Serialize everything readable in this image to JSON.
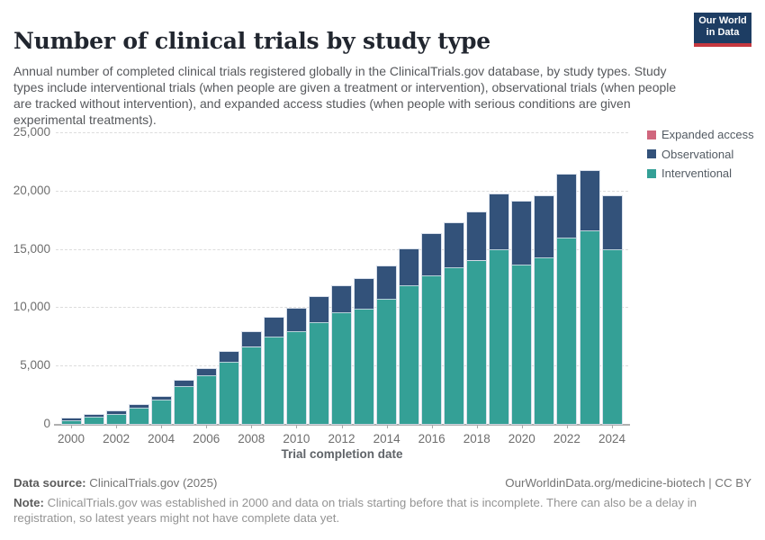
{
  "header": {
    "title": "Number of clinical trials by study type",
    "subtitle": "Annual number of completed clinical trials registered globally in the ClinicalTrials.gov database, by study types. Study types include interventional trials (when people are given a treatment or intervention), observational trials (when people are tracked without intervention), and expanded access studies (when people with serious conditions are given experimental treatments).",
    "logo": {
      "line1": "Our World",
      "line2": "in Data"
    }
  },
  "chart_data": {
    "type": "bar",
    "stacked": true,
    "title": "Number of clinical trials by study type",
    "xlabel": "Trial completion date",
    "ylabel": "",
    "ylim": [
      0,
      25000
    ],
    "yticks": [
      0,
      5000,
      10000,
      15000,
      20000,
      25000
    ],
    "ytick_labels": [
      "0",
      "5,000",
      "10,000",
      "15,000",
      "20,000",
      "25,000"
    ],
    "grid": "horizontal-dashed",
    "legend_position": "top-right",
    "categories": [
      "2000",
      "2001",
      "2002",
      "2003",
      "2004",
      "2005",
      "2006",
      "2007",
      "2008",
      "2009",
      "2010",
      "2011",
      "2012",
      "2013",
      "2014",
      "2015",
      "2016",
      "2017",
      "2018",
      "2019",
      "2020",
      "2021",
      "2022",
      "2023",
      "2024"
    ],
    "xtick_labels": [
      "2000",
      "2002",
      "2004",
      "2006",
      "2008",
      "2010",
      "2012",
      "2014",
      "2016",
      "2018",
      "2020",
      "2022",
      "2024"
    ],
    "series": [
      {
        "name": "Interventional",
        "color": "#34a096",
        "values": [
          300,
          620,
          880,
          1400,
          2050,
          3250,
          4150,
          5350,
          6600,
          7450,
          7950,
          8700,
          9550,
          9900,
          10700,
          11850,
          12750,
          13400,
          14000,
          15000,
          13700,
          14300,
          16000,
          16600,
          15000
        ]
      },
      {
        "name": "Observational",
        "color": "#33527a",
        "values": [
          130,
          160,
          200,
          240,
          250,
          450,
          550,
          800,
          1300,
          1650,
          1950,
          2200,
          2250,
          2500,
          2800,
          3150,
          3550,
          3800,
          4100,
          4700,
          5400,
          5200,
          5400,
          5100,
          4500
        ]
      },
      {
        "name": "Expanded access",
        "color": "#d0667d",
        "values": [
          0,
          0,
          0,
          0,
          0,
          0,
          0,
          0,
          0,
          0,
          0,
          0,
          0,
          0,
          0,
          0,
          0,
          0,
          0,
          0,
          0,
          0,
          0,
          0,
          0
        ]
      }
    ]
  },
  "footer": {
    "datasource_label": "Data source:",
    "datasource_value": " ClinicalTrials.gov (2025)",
    "attribution": "OurWorldinData.org/medicine-biotech | CC BY",
    "note_label": "Note:",
    "note_value": " ClinicalTrials.gov was established in 2000 and data on trials starting before that is incomplete. There can also be a delay in registration, so latest years might not have complete data yet."
  },
  "colors": {
    "interventional": "#34a096",
    "observational": "#33527a",
    "expanded_access": "#d0667d",
    "logo_background": "#1d3d63",
    "logo_accent": "#c5383f",
    "gridline": "#dcdcdc",
    "axis_text": "#6e6e6e"
  }
}
